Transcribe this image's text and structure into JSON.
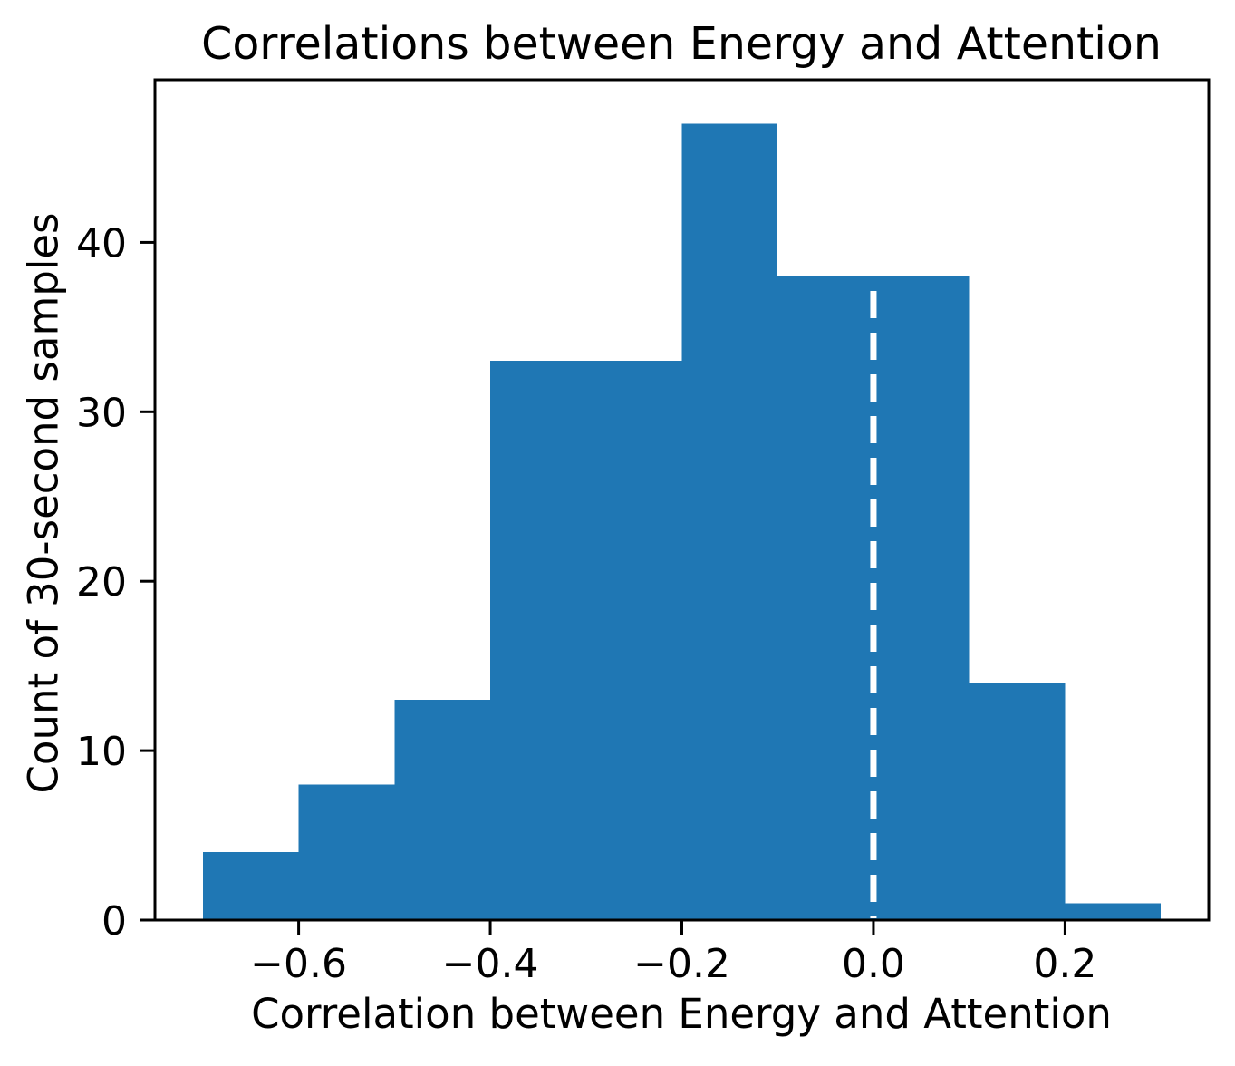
{
  "chart_data": {
    "type": "bar",
    "subtype": "histogram",
    "title": "Correlations between Energy and Attention",
    "xlabel": "Correlation between Energy and Attention",
    "ylabel": "Count of 30-second samples",
    "bin_edges": [
      -0.7,
      -0.6,
      -0.5,
      -0.4,
      -0.3,
      -0.2,
      -0.1,
      0.0,
      0.1,
      0.2,
      0.3
    ],
    "counts": [
      4,
      8,
      13,
      33,
      33,
      47,
      38,
      38,
      14,
      1
    ],
    "total_samples": 229,
    "bar_color": "#1f77b4",
    "background_color": "#ffffff",
    "axis_color": "#000000",
    "xlim": [
      -0.75,
      0.35
    ],
    "ylim": [
      0,
      49.6
    ],
    "xticks": {
      "values": [
        -0.6,
        -0.4,
        -0.2,
        0.0,
        0.2
      ],
      "labels": [
        "−0.6",
        "−0.4",
        "−0.2",
        "0.0",
        "0.2"
      ]
    },
    "yticks": {
      "values": [
        0,
        10,
        20,
        30,
        40
      ],
      "labels": [
        "0",
        "10",
        "20",
        "30",
        "40"
      ]
    },
    "grid": false,
    "legend": null,
    "vline": {
      "x": 0.0,
      "color": "#ffffff",
      "linestyle": "dashed"
    }
  }
}
